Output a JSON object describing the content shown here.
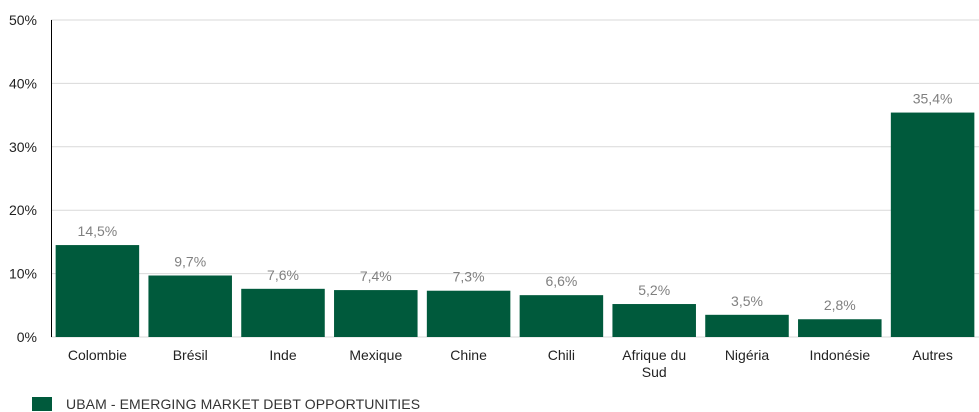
{
  "chart_data": {
    "type": "bar",
    "categories": [
      "Colombie",
      "Brésil",
      "Inde",
      "Mexique",
      "Chine",
      "Chili",
      "Afrique du Sud",
      "Nigéria",
      "Indonésie",
      "Autres"
    ],
    "category_lines": [
      [
        "Colombie"
      ],
      [
        "Brésil"
      ],
      [
        "Inde"
      ],
      [
        "Mexique"
      ],
      [
        "Chine"
      ],
      [
        "Chili"
      ],
      [
        "Afrique du",
        "Sud"
      ],
      [
        "Nigéria"
      ],
      [
        "Indonésie"
      ],
      [
        "Autres"
      ]
    ],
    "series": [
      {
        "name": "UBAM - EMERGING MARKET DEBT OPPORTUNITIES",
        "values": [
          14.5,
          9.7,
          7.6,
          7.4,
          7.3,
          6.6,
          5.2,
          3.5,
          2.8,
          35.4
        ],
        "labels": [
          "14,5%",
          "9,7%",
          "7,6%",
          "7,4%",
          "7,3%",
          "6,6%",
          "5,2%",
          "3,5%",
          "2,8%",
          "35,4%"
        ]
      }
    ],
    "yticks": [
      0,
      10,
      20,
      30,
      40,
      50
    ],
    "ytick_labels": [
      "0%",
      "10%",
      "20%",
      "30%",
      "40%",
      "50%"
    ],
    "ylim": [
      0,
      50
    ],
    "grid": true,
    "legend_position": "bottom-left",
    "bar_color": "#005a3c",
    "gridline_color": "#d9d9d9",
    "axis_color": "#000000",
    "data_label_color": "#808080"
  }
}
